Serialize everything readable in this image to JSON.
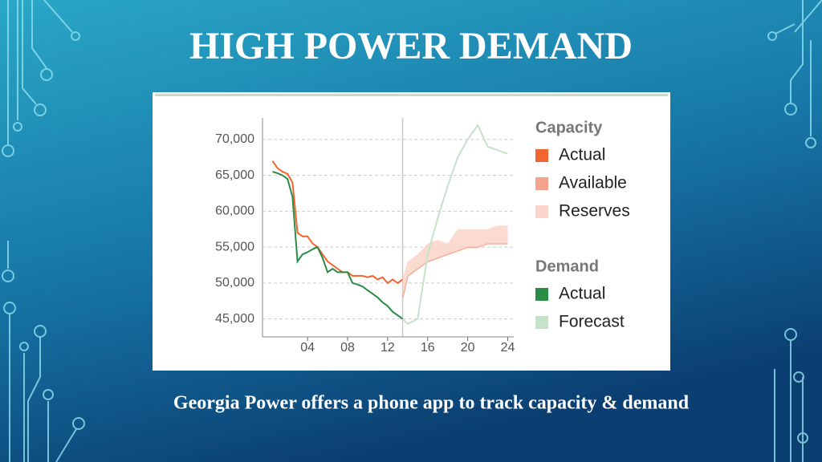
{
  "title": "HIGH POWER DEMAND",
  "caption": "Georgia Power offers a phone app to track capacity & demand",
  "chart_data": {
    "type": "line",
    "xlim": [
      -0.5,
      24.6
    ],
    "ylim": [
      42500,
      73000
    ],
    "xticks": [
      {
        "value": 4,
        "label": "04"
      },
      {
        "value": 8,
        "label": "08"
      },
      {
        "value": 12,
        "label": "12"
      },
      {
        "value": 16,
        "label": "16"
      },
      {
        "value": 20,
        "label": "20"
      },
      {
        "value": 24,
        "label": "24"
      }
    ],
    "yticks": [
      {
        "value": 45000,
        "label": "45,000"
      },
      {
        "value": 50000,
        "label": "50,000"
      },
      {
        "value": 55000,
        "label": "55,000"
      },
      {
        "value": 60000,
        "label": "60,000"
      },
      {
        "value": 65000,
        "label": "65,000"
      },
      {
        "value": 70000,
        "label": "70,000"
      }
    ],
    "grid": true,
    "marker_x": 13.5,
    "series_groups": [
      {
        "name": "Capacity",
        "series": [
          {
            "name": "Actual",
            "color": "#f26430",
            "style": "line",
            "x": [
              0.5,
              1,
              1.5,
              2,
              2.5,
              3,
              3.5,
              4,
              4.5,
              5,
              5.5,
              6,
              6.5,
              7,
              7.5,
              8,
              8.5,
              9,
              9.5,
              10,
              10.5,
              11,
              11.5,
              12,
              12.5,
              13,
              13.5
            ],
            "values": [
              67000,
              66000,
              65500,
              65200,
              64000,
              57000,
              56500,
              56500,
              55500,
              55000,
              54000,
              53000,
              52500,
              52000,
              51500,
              51500,
              51000,
              51000,
              51000,
              50800,
              51000,
              50500,
              50800,
              50000,
              50500,
              50000,
              50500
            ]
          },
          {
            "name": "Available",
            "color": "#f4a48c",
            "style": "line",
            "x": [
              13.5,
              14,
              15,
              16,
              17,
              18,
              19,
              20,
              21,
              22,
              23,
              24
            ],
            "values": [
              48000,
              51000,
              52000,
              53000,
              53500,
              54000,
              54500,
              55000,
              55000,
              55500,
              55500,
              55500
            ]
          },
          {
            "name": "Reserves",
            "color": "#fad4c8",
            "style": "band",
            "x": [
              13.5,
              14,
              15,
              16,
              17,
              18,
              19,
              20,
              21,
              22,
              23,
              24
            ],
            "values": [
              2500,
              2000,
              2000,
              2500,
              2500,
              1500,
              3000,
              2500,
              2500,
              2000,
              2500,
              2500
            ]
          }
        ]
      },
      {
        "name": "Demand",
        "series": [
          {
            "name": "Actual",
            "color": "#2a8c45",
            "style": "line",
            "x": [
              0.5,
              1,
              1.5,
              2,
              2.5,
              3,
              3.5,
              4,
              4.5,
              5,
              5.5,
              6,
              6.5,
              7,
              7.5,
              8,
              8.5,
              9,
              9.5,
              10,
              10.5,
              11,
              11.5,
              12,
              12.5,
              13,
              13.5
            ],
            "values": [
              65500,
              65300,
              65000,
              64500,
              62000,
              53000,
              54000,
              54300,
              54700,
              55000,
              53500,
              51500,
              52000,
              51500,
              51500,
              51500,
              50000,
              49800,
              49500,
              49000,
              48500,
              48000,
              47300,
              46800,
              46000,
              45500,
              45000
            ]
          },
          {
            "name": "Forecast",
            "color": "#c6e2c8",
            "style": "line",
            "x": [
              13.5,
              14,
              15,
              16,
              17,
              18,
              19,
              20,
              21,
              22,
              23,
              24
            ],
            "values": [
              45000,
              44300,
              45000,
              54000,
              59000,
              63500,
              67500,
              70000,
              72000,
              69000,
              68500,
              68000
            ]
          }
        ]
      }
    ]
  }
}
